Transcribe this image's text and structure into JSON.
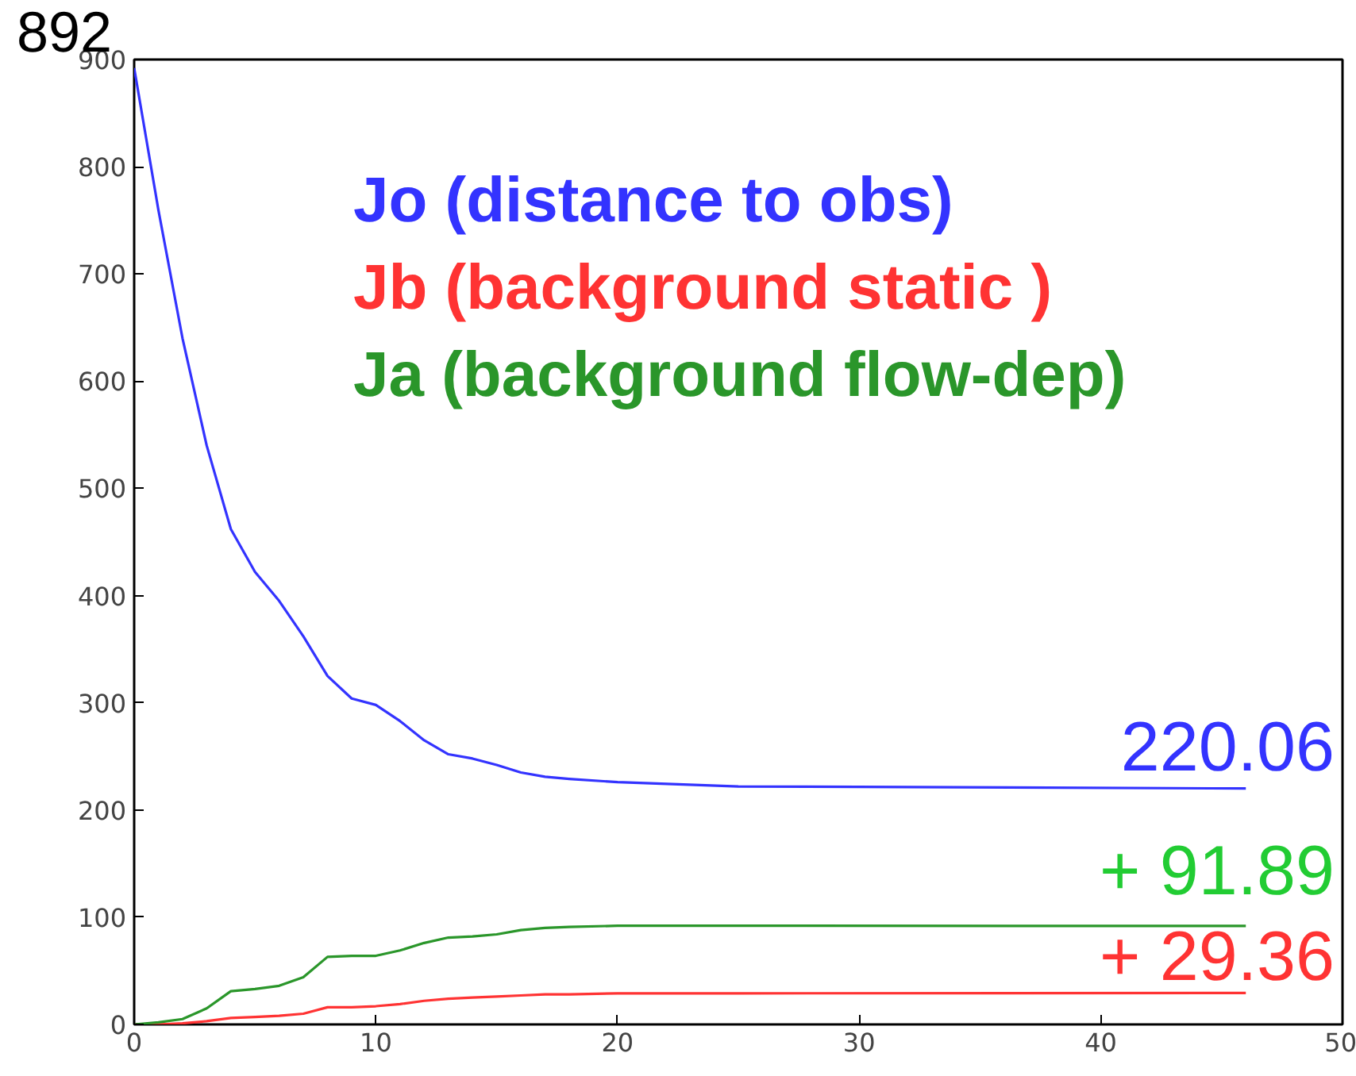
{
  "chart_data": {
    "type": "line",
    "xlim": [
      0,
      50
    ],
    "xticks": [
      0,
      10,
      20,
      30,
      40,
      50
    ],
    "ylim": [
      0,
      900
    ],
    "yticks": [
      0,
      100,
      200,
      300,
      400,
      500,
      600,
      700,
      800,
      900
    ],
    "grid": false,
    "marker": "none",
    "line_style": "solid",
    "series": [
      {
        "name": "Jo (distance to obs)",
        "color": "#3333ff",
        "x": [
          0,
          1,
          2,
          3,
          4,
          5,
          6,
          7,
          8,
          9,
          10,
          11,
          12,
          13,
          14,
          15,
          16,
          17,
          18,
          20,
          25,
          46
        ],
        "values": [
          892,
          760,
          640,
          540,
          462,
          422,
          395,
          362,
          325,
          304,
          298,
          283,
          265,
          252,
          248,
          242,
          235,
          231,
          229,
          226,
          222,
          220.06
        ]
      },
      {
        "name": "Jb (background static )",
        "color": "#ff3333",
        "x": [
          0,
          1,
          2,
          3,
          4,
          5,
          6,
          7,
          8,
          9,
          10,
          11,
          12,
          13,
          14,
          15,
          16,
          17,
          18,
          20,
          25,
          46
        ],
        "values": [
          0,
          0,
          1,
          3,
          6,
          7,
          8,
          10,
          16,
          16,
          17,
          19,
          22,
          24,
          25,
          26,
          27,
          28,
          28,
          29,
          29,
          29.36
        ]
      },
      {
        "name": "Ja (background flow-dep)",
        "color": "#2a962a",
        "x": [
          0,
          1,
          2,
          3,
          4,
          5,
          6,
          7,
          8,
          9,
          10,
          11,
          12,
          13,
          14,
          15,
          16,
          17,
          18,
          20,
          25,
          46
        ],
        "values": [
          0,
          2,
          5,
          15,
          31,
          33,
          36,
          44,
          63,
          64,
          64,
          69,
          76,
          81,
          82,
          84,
          88,
          90,
          91,
          92,
          92,
          91.89
        ]
      }
    ],
    "annotations": [
      "892",
      "220.06",
      "+ 91.89",
      "+ 29.36"
    ]
  }
}
